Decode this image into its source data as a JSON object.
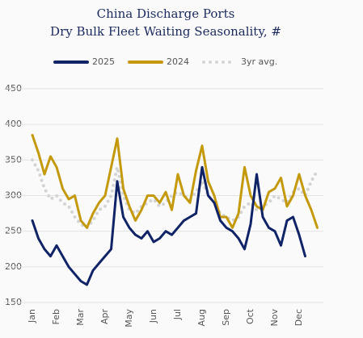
{
  "chart_data": {
    "type": "line",
    "title": [
      "China Discharge Ports",
      "Dry Bulk Fleet Waiting Seasonality, #"
    ],
    "categories": [
      "Jan",
      null,
      null,
      null,
      "Feb",
      null,
      null,
      null,
      "Mar",
      null,
      null,
      null,
      "Apr",
      null,
      null,
      null,
      "May",
      null,
      null,
      null,
      "Jun",
      null,
      null,
      null,
      "Jul",
      null,
      null,
      null,
      "Aug",
      null,
      null,
      null,
      "Sep",
      null,
      null,
      null,
      "Oct",
      null,
      null,
      null,
      "Nov",
      null,
      null,
      null,
      "Dec",
      null,
      null,
      null
    ],
    "series": [
      {
        "name": "2025",
        "color": "#0f2366",
        "dashed": false,
        "values": [
          265,
          240,
          225,
          215,
          230,
          215,
          200,
          190,
          180,
          175,
          195,
          205,
          215,
          225,
          320,
          270,
          255,
          245,
          240,
          250,
          235,
          240,
          250,
          245,
          255,
          265,
          270,
          275,
          340,
          300,
          290,
          265,
          255,
          250,
          240,
          225,
          260,
          330,
          270,
          255,
          250,
          230,
          265,
          270,
          245,
          215,
          null,
          null
        ]
      },
      {
        "name": "2024",
        "color": "#c49a0c",
        "dashed": false,
        "values": [
          385,
          360,
          330,
          355,
          340,
          310,
          295,
          300,
          265,
          255,
          275,
          290,
          300,
          340,
          380,
          310,
          285,
          265,
          280,
          300,
          300,
          290,
          305,
          280,
          330,
          300,
          290,
          335,
          370,
          320,
          300,
          270,
          270,
          255,
          275,
          340,
          300,
          285,
          280,
          305,
          310,
          325,
          285,
          300,
          330,
          300,
          280,
          255
        ]
      },
      {
        "name": "3yr avg.",
        "color": "#d4d4d4",
        "dashed": true,
        "values": [
          350,
          335,
          310,
          295,
          300,
          290,
          285,
          270,
          260,
          255,
          265,
          280,
          285,
          300,
          340,
          300,
          280,
          275,
          285,
          290,
          295,
          285,
          290,
          300,
          305,
          300,
          295,
          305,
          320,
          300,
          290,
          275,
          270,
          265,
          270,
          285,
          290,
          280,
          285,
          290,
          300,
          295,
          290,
          305,
          310,
          300,
          320,
          335
        ]
      }
    ],
    "ylim": [
      150,
      450
    ],
    "yticks": [
      150,
      200,
      250,
      300,
      350,
      400,
      450
    ],
    "grid": true,
    "legend": "top"
  }
}
